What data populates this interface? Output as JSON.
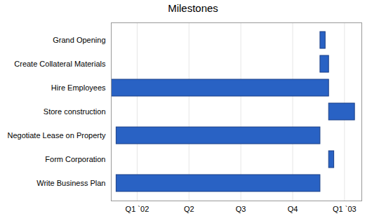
{
  "chart_data": {
    "type": "gantt",
    "title": "Milestones",
    "orientation": "horizontal",
    "categories": [
      "Grand Opening",
      "Create Collateral Materials",
      "Hire Employees",
      "Store construction",
      "Negotiate Lease on Property",
      "Form Corporation",
      "Write Business Plan"
    ],
    "starts": [
      12.1,
      12.1,
      0,
      12.6,
      0.3,
      12.6,
      0.3
    ],
    "ends": [
      12.4,
      12.6,
      12.6,
      14.1,
      12.1,
      12.9,
      12.1
    ],
    "color": "#2962c4",
    "xlim": [
      0,
      14.5
    ],
    "xticks": [
      {
        "value": 1.5,
        "label": "Q1 `02"
      },
      {
        "value": 4.5,
        "label": "Q2"
      },
      {
        "value": 7.5,
        "label": "Q3"
      },
      {
        "value": 10.5,
        "label": "Q4"
      },
      {
        "value": 13.5,
        "label": "Q1 `03"
      }
    ],
    "grid": true
  }
}
